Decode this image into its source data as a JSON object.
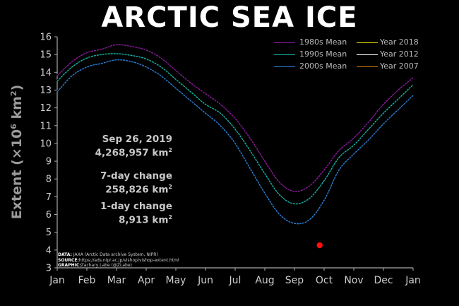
{
  "title": "ARCTIC SEA ICE",
  "stats": {
    "date": "Sep 26, 2019",
    "extent": "4,268,957 km",
    "change7_label": "7-day change",
    "change7_value": "258,826 km",
    "change1_label": "1-day change",
    "change1_value": "8,913 km"
  },
  "credits": {
    "data_label": "DATA:",
    "data_text": "JAXA (Arctic Data archive System, NIPR)",
    "source_label": "SOURCE:",
    "source_text": "https://ads.nipr.ac.jp/vishop/vishop-extent.html",
    "graphic_label": "GRAPHIC:",
    "graphic_text": "Zachary Labe (@ZLabe)"
  },
  "chart_data": {
    "type": "line",
    "ylabel_main": "Extent (",
    "ylabel_unit": "×10",
    "ylabel_exp": "6",
    "ylabel_unit2": " km",
    "ylabel_exp2": "2",
    "ylabel_close": ")",
    "ylim": [
      3,
      16
    ],
    "yticks": [
      "3",
      "4",
      "5",
      "6",
      "7",
      "8",
      "9",
      "10",
      "11",
      "12",
      "13",
      "14",
      "15",
      "16"
    ],
    "months": [
      "Jan",
      "Feb",
      "Mar",
      "Apr",
      "May",
      "Jun",
      "Jul",
      "Aug",
      "Sep",
      "Oct",
      "Nov",
      "Dec",
      "Jan"
    ],
    "series": [
      {
        "name": "1980s Mean",
        "color": "#8b1a9e",
        "x": [
          0,
          0.5,
          1,
          1.5,
          2,
          2.5,
          3,
          3.5,
          4,
          4.5,
          5,
          5.5,
          6,
          6.5,
          7,
          7.5,
          8,
          8.5,
          9,
          9.5,
          10,
          10.5,
          11,
          11.5,
          12
        ],
        "values": [
          13.8,
          14.6,
          15.1,
          15.3,
          15.55,
          15.45,
          15.25,
          14.8,
          14.1,
          13.4,
          12.8,
          12.2,
          11.4,
          10.3,
          9.0,
          7.8,
          7.3,
          7.6,
          8.5,
          9.6,
          10.3,
          11.2,
          12.2,
          13.0,
          13.7
        ]
      },
      {
        "name": "1990s Mean",
        "color": "#17b3a3",
        "x": [
          0,
          0.5,
          1,
          1.5,
          2,
          2.5,
          3,
          3.5,
          4,
          4.5,
          5,
          5.5,
          6,
          6.5,
          7,
          7.5,
          8,
          8.5,
          9,
          9.5,
          10,
          10.5,
          11,
          11.5,
          12
        ],
        "values": [
          13.5,
          14.3,
          14.8,
          15.0,
          15.05,
          14.95,
          14.75,
          14.3,
          13.6,
          12.9,
          12.2,
          11.7,
          10.8,
          9.6,
          8.3,
          7.1,
          6.6,
          6.9,
          7.9,
          9.2,
          9.9,
          10.8,
          11.7,
          12.5,
          13.3
        ]
      },
      {
        "name": "2000s Mean",
        "color": "#2a7fd4",
        "x": [
          0,
          0.5,
          1,
          1.5,
          2,
          2.5,
          3,
          3.5,
          4,
          4.5,
          5,
          5.5,
          6,
          6.5,
          7,
          7.5,
          8,
          8.5,
          9,
          9.5,
          10,
          10.5,
          11,
          11.5,
          12
        ],
        "values": [
          12.9,
          13.8,
          14.3,
          14.5,
          14.7,
          14.6,
          14.3,
          13.8,
          13.1,
          12.4,
          11.7,
          11.0,
          10.0,
          8.6,
          7.2,
          6.0,
          5.5,
          5.7,
          6.8,
          8.5,
          9.4,
          10.2,
          11.1,
          11.9,
          12.7
        ]
      },
      {
        "name": "Year 2018",
        "color": "#e6d400",
        "x": [],
        "values": []
      },
      {
        "name": "Year 2012",
        "color": "#ffffff",
        "x": [],
        "values": []
      },
      {
        "name": "Year 2007",
        "color": "#c7750f",
        "x": [],
        "values": []
      }
    ],
    "current_point": {
      "x": 8.85,
      "y": 4.27,
      "color": "#ff1010"
    }
  }
}
